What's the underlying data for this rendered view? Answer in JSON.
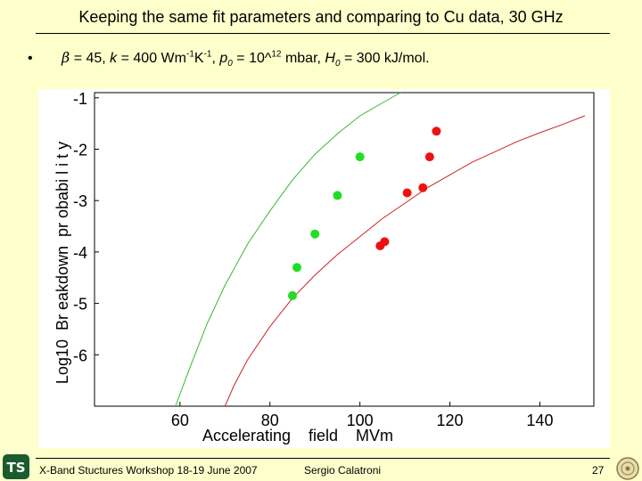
{
  "slide": {
    "title": "Keeping the same fit parameters and comparing to Cu data, 30 GHz",
    "bullet": {
      "marker": "•",
      "beta_symbol": "β",
      "beta_value": " = 45, ",
      "k_symbol": "k",
      "k_value": " = 400 Wm",
      "k_exp1": "-1",
      "k_mid": "K",
      "k_exp2": "-1",
      "k_sep": ", ",
      "p_symbol": "p",
      "p_sub": "0",
      "p_value": " = 10^",
      "p_exp": "12",
      "p_unit": " mbar, ",
      "h_symbol": "H",
      "h_sub": "0",
      "h_value": " = 300 kJ/mol."
    },
    "footer": {
      "left": "X-Band Stuctures Workshop 18-19 June 2007",
      "center": "Sergio Calatroni",
      "page": "27"
    },
    "logo_text": "TS",
    "colors": {
      "background": "#ffffcc",
      "green": "#22dd22",
      "red": "#ee1111",
      "green_line": "#33bb33",
      "red_line": "#cc2222"
    }
  },
  "chart_data": {
    "type": "scatter",
    "title": "",
    "xlabel": "Accelerating    field    MVm",
    "ylabel": "Log10  Br eakdown  pr obabi l i t y",
    "xlim": [
      41,
      152
    ],
    "ylim": [
      -7.0,
      -0.9
    ],
    "xticks": [
      {
        "value": 60,
        "label": "60"
      },
      {
        "value": 80,
        "label": "80"
      },
      {
        "value": 100,
        "label": "100"
      },
      {
        "value": 120,
        "label": "120"
      },
      {
        "value": 140,
        "label": "140"
      }
    ],
    "yticks": [
      {
        "value": -1,
        "label": "-1"
      },
      {
        "value": -2,
        "label": "-2"
      },
      {
        "value": -3,
        "label": "-3"
      },
      {
        "value": -4,
        "label": "-4"
      },
      {
        "value": -5,
        "label": "-5"
      },
      {
        "value": -6,
        "label": "-6"
      }
    ],
    "grid": false,
    "legend": "none",
    "series": [
      {
        "kind": "points",
        "color": "#22dd22",
        "points": [
          {
            "x": 100,
            "y": -2.15
          },
          {
            "x": 95,
            "y": -2.9
          },
          {
            "x": 90,
            "y": -3.65
          },
          {
            "x": 86,
            "y": -4.3
          },
          {
            "x": 85,
            "y": -4.85
          }
        ]
      },
      {
        "kind": "points",
        "color": "#ee1111",
        "points": [
          {
            "x": 117,
            "y": -1.65
          },
          {
            "x": 115.5,
            "y": -2.15
          },
          {
            "x": 114,
            "y": -2.75
          },
          {
            "x": 110.5,
            "y": -2.85
          },
          {
            "x": 105.5,
            "y": -3.8
          },
          {
            "x": 104.5,
            "y": -3.88
          }
        ]
      },
      {
        "kind": "line",
        "color": "#33bb33",
        "points": [
          {
            "x": 59,
            "y": -7.0
          },
          {
            "x": 62,
            "y": -6.3
          },
          {
            "x": 66,
            "y": -5.4
          },
          {
            "x": 70,
            "y": -4.65
          },
          {
            "x": 75,
            "y": -3.85
          },
          {
            "x": 80,
            "y": -3.2
          },
          {
            "x": 85,
            "y": -2.6
          },
          {
            "x": 90,
            "y": -2.1
          },
          {
            "x": 95,
            "y": -1.7
          },
          {
            "x": 100,
            "y": -1.35
          },
          {
            "x": 105,
            "y": -1.1
          },
          {
            "x": 109,
            "y": -0.9
          }
        ]
      },
      {
        "kind": "line",
        "color": "#cc2222",
        "points": [
          {
            "x": 70,
            "y": -7.0
          },
          {
            "x": 72,
            "y": -6.6
          },
          {
            "x": 75,
            "y": -6.1
          },
          {
            "x": 80,
            "y": -5.45
          },
          {
            "x": 85,
            "y": -4.9
          },
          {
            "x": 90,
            "y": -4.45
          },
          {
            "x": 95,
            "y": -4.05
          },
          {
            "x": 100,
            "y": -3.7
          },
          {
            "x": 105,
            "y": -3.35
          },
          {
            "x": 110,
            "y": -3.05
          },
          {
            "x": 115,
            "y": -2.75
          },
          {
            "x": 120,
            "y": -2.5
          },
          {
            "x": 125,
            "y": -2.25
          },
          {
            "x": 130,
            "y": -2.05
          },
          {
            "x": 135,
            "y": -1.85
          },
          {
            "x": 140,
            "y": -1.68
          },
          {
            "x": 145,
            "y": -1.52
          },
          {
            "x": 150,
            "y": -1.35
          }
        ]
      }
    ]
  }
}
